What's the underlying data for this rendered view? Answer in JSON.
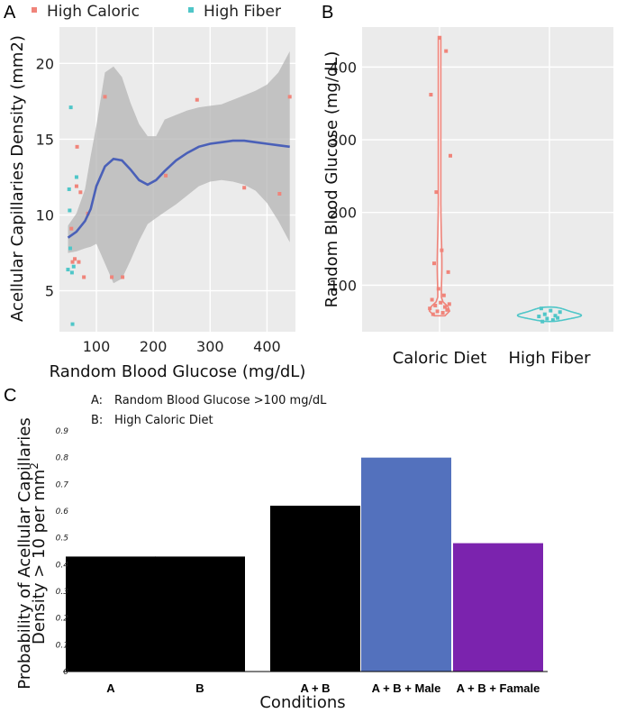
{
  "colors": {
    "high_caloric": "#F0847A",
    "high_fiber": "#4FC6C8",
    "smooth_line": "#4A60B8",
    "ribbon": "#B4B4B4",
    "panel_bg": "#EBEBEB",
    "bar_black": "#000000",
    "bar_male": "#5371BD",
    "bar_female": "#7B23AE"
  },
  "panel_labels": {
    "a": "A",
    "b": "B",
    "c": "C"
  },
  "chart_data": [
    {
      "panel": "A",
      "type": "scatter",
      "xlabel": "Random Blood Glucose (mg/dL)",
      "ylabel": "Acellular Capillaries Density (mm2)",
      "xlim": [
        35,
        450
      ],
      "ylim": [
        2.3,
        22.4
      ],
      "x_ticks": [
        "100",
        "200",
        "300",
        "400"
      ],
      "x_tick_values": [
        100,
        200,
        300,
        400
      ],
      "y_ticks": [
        "5",
        "10",
        "15",
        "20"
      ],
      "y_tick_values": [
        5,
        10,
        15,
        20
      ],
      "legend": [
        "High Caloric",
        "High Fiber"
      ],
      "series": [
        {
          "name": "High Caloric",
          "points": [
            [
              56,
              9.1
            ],
            [
              58,
              6.9
            ],
            [
              62,
              7.1
            ],
            [
              65,
              11.9
            ],
            [
              66,
              14.5
            ],
            [
              69,
              6.9
            ],
            [
              72,
              11.5
            ],
            [
              78,
              5.9
            ],
            [
              85,
              10.1
            ],
            [
              115,
              17.8
            ],
            [
              127,
              5.9
            ],
            [
              146,
              5.9
            ],
            [
              222,
              12.6
            ],
            [
              277,
              17.6
            ],
            [
              360,
              11.8
            ],
            [
              422,
              11.4
            ],
            [
              440,
              17.8
            ]
          ]
        },
        {
          "name": "High Fiber",
          "points": [
            [
              50,
              6.4
            ],
            [
              52,
              11.7
            ],
            [
              53,
              10.3
            ],
            [
              54,
              7.8
            ],
            [
              55,
              17.1
            ],
            [
              57,
              6.2
            ],
            [
              58,
              2.8
            ],
            [
              60,
              6.6
            ],
            [
              65,
              12.5
            ]
          ]
        }
      ],
      "smooth": {
        "name": "LOESS fit",
        "x": [
          50,
          65,
          80,
          90,
          100,
          115,
          130,
          145,
          160,
          175,
          190,
          205,
          220,
          240,
          260,
          280,
          300,
          320,
          340,
          360,
          380,
          400,
          420,
          440
        ],
        "y": [
          8.5,
          8.9,
          9.6,
          10.4,
          11.9,
          13.2,
          13.7,
          13.6,
          13.0,
          12.3,
          12.0,
          12.3,
          12.9,
          13.6,
          14.1,
          14.5,
          14.7,
          14.8,
          14.9,
          14.9,
          14.8,
          14.7,
          14.6,
          14.5
        ],
        "lower": [
          7.5,
          7.6,
          7.8,
          7.9,
          8.1,
          6.8,
          5.5,
          5.8,
          7.0,
          8.3,
          9.4,
          9.8,
          10.2,
          10.7,
          11.3,
          11.9,
          12.2,
          12.3,
          12.2,
          12.0,
          11.6,
          10.8,
          9.6,
          8.2
        ],
        "upper": [
          9.3,
          10.1,
          11.7,
          13.9,
          15.9,
          19.4,
          19.8,
          19.1,
          17.4,
          16.0,
          15.2,
          15.2,
          16.3,
          16.6,
          16.9,
          17.1,
          17.2,
          17.3,
          17.6,
          17.9,
          18.2,
          18.6,
          19.4,
          20.8
        ]
      }
    },
    {
      "panel": "B",
      "type": "violin",
      "xlabel": "",
      "ylabel": "Random Blood Glucose (mg/dL)",
      "ylim": [
        36,
        455
      ],
      "y_ticks": [
        "100",
        "200",
        "300",
        "400"
      ],
      "y_tick_values": [
        100,
        200,
        300,
        400
      ],
      "categories": [
        "Caloric Diet",
        "High Fiber"
      ],
      "series": [
        {
          "name": "Caloric Diet",
          "points": [
            60,
            62,
            64,
            66,
            68,
            70,
            72,
            74,
            76,
            80,
            86,
            95,
            118,
            130,
            148,
            228,
            278,
            362,
            422,
            440
          ],
          "range": [
            58,
            442
          ]
        },
        {
          "name": "High Fiber",
          "points": [
            50,
            52,
            54,
            55,
            57,
            58,
            60,
            63,
            65,
            68
          ],
          "range": [
            50,
            70
          ]
        }
      ]
    },
    {
      "panel": "C",
      "type": "bar",
      "xlabel": "Conditions",
      "ylabel_line1": "Probability of Acellular Capillaries",
      "ylabel_line2": "Density > 10 per mm",
      "ylabel_sup": "2",
      "ylim": [
        0,
        0.9
      ],
      "y_ticks": [
        "0",
        "0.1",
        "0.2",
        "0.3",
        "0.4",
        "0.5",
        "0.6",
        "0.7",
        "0.8",
        "0.9"
      ],
      "y_tick_values": [
        0,
        0.1,
        0.2,
        0.3,
        0.4,
        0.5,
        0.6,
        0.7,
        0.8,
        0.9
      ],
      "categories": [
        "A",
        "B",
        "A + B",
        "A + B + Male",
        "A + B + Famale"
      ],
      "values": [
        0.43,
        0.43,
        0.62,
        0.8,
        0.48
      ],
      "bar_colors": [
        "#000000",
        "#000000",
        "#000000",
        "#5371BD",
        "#7B23AE"
      ],
      "annotations": [
        {
          "key": "A:",
          "text": "Random Blood Glucose >100 mg/dL"
        },
        {
          "key": "B:",
          "text": "High Caloric Diet"
        }
      ]
    }
  ]
}
